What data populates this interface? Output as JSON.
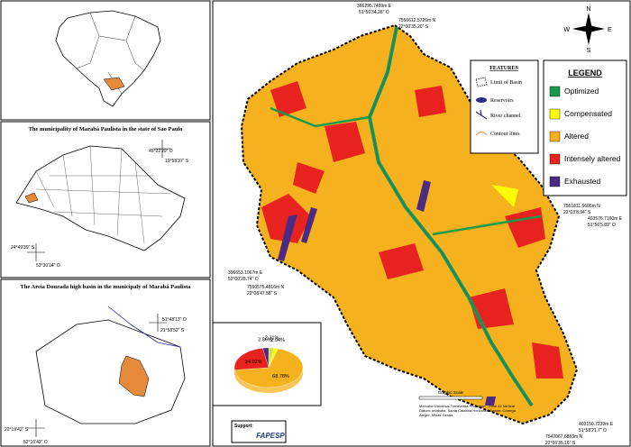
{
  "panels": {
    "sp_title": "The municipality of Marabá Paulista in the state of Sao Paulo",
    "sp_coords": [
      "45°22'29\" O",
      "19°58'37\" S",
      "24°49'39\" S",
      "53°30'14\" O"
    ],
    "basin_title": "The Areia Dourada high basin in the municipaly of Marabá Paulista",
    "basin_coords": [
      "51°48'13\" O",
      "21°58'52\" S",
      "22°19'42\" S",
      "52°10'42\" O"
    ]
  },
  "map": {
    "coords": [
      "366295.7499m E",
      "51°56'34.26\" O",
      "7556612.5726m N",
      "22°00'35.20\" S",
      "7551811.5605m N",
      "22°03'8.94\" S",
      "403576.7160m E",
      "51°56'5.89\" O",
      "396653.1067m E",
      "52°00'28.74\" O",
      "7550575.4816m N",
      "22°08'47.58\" S",
      "403150.7239m E",
      "51°58'21.7\" O",
      "7547067.6883m N",
      "22°06'35.16\" S"
    ],
    "compass": [
      "N",
      "S",
      "W",
      "E"
    ],
    "features": {
      "title": "FEATURES",
      "items": [
        "Limit of Basin",
        "Reservoirs",
        "River channel",
        "Contour lines"
      ]
    },
    "legend": {
      "title": "LEGEND",
      "items": [
        {
          "name": "Optimized",
          "color": "#1a9a4a"
        },
        {
          "name": "Compensated",
          "color": "#ffff00"
        },
        {
          "name": "Altered",
          "color": "#f5b21e"
        },
        {
          "name": "Intensely altered",
          "color": "#e8231f"
        },
        {
          "name": "Exhausted",
          "color": "#4b2a82"
        }
      ]
    },
    "scale_title": "Graphic Scale",
    "projection": "Mercator Universal Transversa Projection - Zone 22 Vertical Datum: Imbituba, Santa Catarina Horizontal Datum: Córrego Alegre, Minas Gerais",
    "support": "Support:",
    "sponsor": "FAPESP"
  },
  "chart_data": {
    "type": "pie",
    "values": [
      2.86,
      2.31,
      2.04,
      68.78,
      24.02
    ],
    "value_labels": [
      "2.86%",
      "2.31%",
      "2.04%",
      "68.78%",
      "24.02%"
    ],
    "colors": [
      "#4b2a82",
      "#c8e04a",
      "#ffff00",
      "#f5b21e",
      "#e8231f"
    ]
  }
}
